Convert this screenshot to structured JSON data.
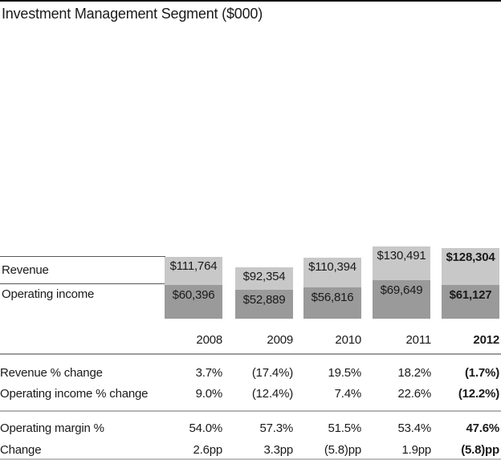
{
  "title": "Investment Management Segment ($000)",
  "chart_data": {
    "type": "bar",
    "title": "Investment Management Segment ($000)",
    "unit": "$000",
    "categories": [
      "2008",
      "2009",
      "2010",
      "2011",
      "2012"
    ],
    "series": [
      {
        "name": "Revenue",
        "values": [
          111764,
          92354,
          110394,
          130491,
          128304
        ],
        "labels": [
          "$111,764",
          "$92,354",
          "$110,394",
          "$130,491",
          "$128,304"
        ]
      },
      {
        "name": "Operating income",
        "values": [
          60396,
          52889,
          56816,
          69649,
          61127
        ],
        "labels": [
          "$60,396",
          "$52,889",
          "$56,816",
          "$69,649",
          "$61,127"
        ]
      }
    ],
    "colors": {
      "revenue_bar": "#c7c8c7",
      "operating_income_bar": "#9a9a9a"
    },
    "legend_position": "left",
    "highlight_category": "2012",
    "layout": "stacked-overlap: operating income drawn inside revenue bar"
  },
  "table": {
    "rows": [
      {
        "label": "Revenue % change",
        "values": [
          "3.7%",
          "(17.4%)",
          "19.5%",
          "18.2%",
          "(1.7%)"
        ]
      },
      {
        "label": "Operating income % change",
        "values": [
          "9.0%",
          "(12.4%)",
          "7.4%",
          "22.6%",
          "(12.2%)"
        ]
      },
      {
        "label": "Operating margin %",
        "values": [
          "54.0%",
          "57.3%",
          "51.5%",
          "53.4%",
          "47.6%"
        ]
      },
      {
        "label": "Change",
        "values": [
          "2.6pp",
          "3.3pp",
          "(5.8)pp",
          "1.9pp",
          "(5.8)pp"
        ]
      }
    ]
  }
}
